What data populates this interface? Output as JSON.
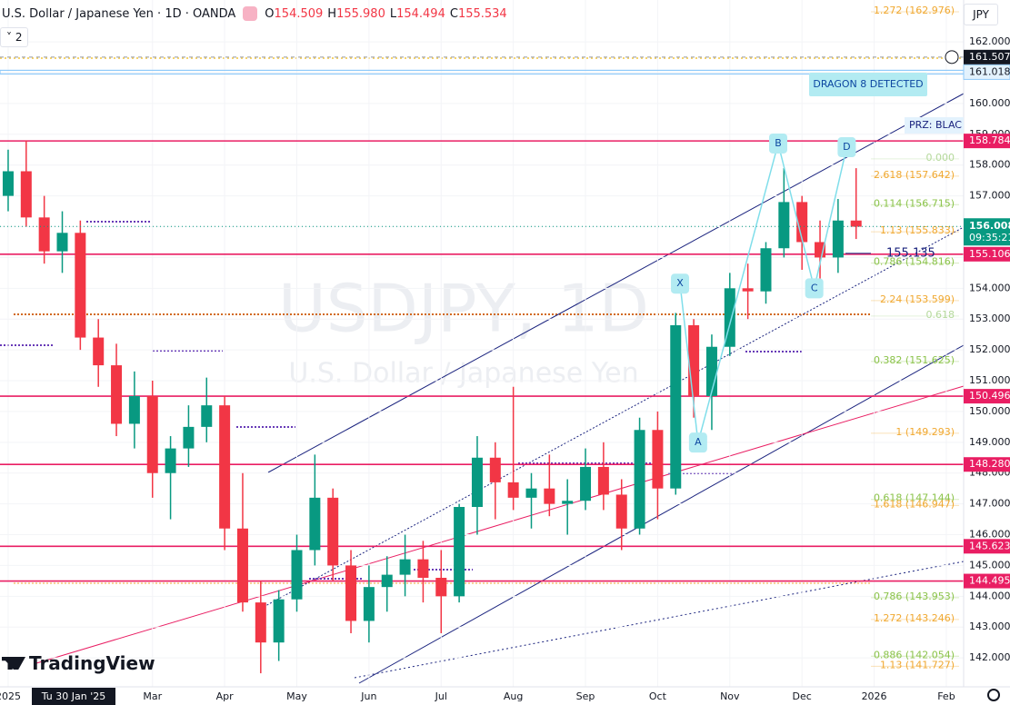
{
  "header": {
    "symbol": "U.S. Dollar / Japanese Yen · 1D · OANDA",
    "ohlc": [
      {
        "key": "O",
        "value": "154.509"
      },
      {
        "key": "H",
        "value": "155.980"
      },
      {
        "key": "L",
        "value": "154.494"
      },
      {
        "key": "C",
        "value": "155.534"
      }
    ],
    "indicators": "2",
    "currency": "JPY",
    "logo": "TradingView"
  },
  "chart_data": {
    "type": "candlestick",
    "watermark": {
      "symbol": "USDJPY, 1D",
      "name": "U.S. Dollar / Japanese Yen"
    },
    "up_color": "#089981",
    "down_color": "#f23645",
    "x": [
      0,
      0.25,
      0.5,
      0.75,
      1,
      1.25,
      1.5,
      1.75,
      2,
      2.25,
      2.5,
      2.75,
      3,
      3.25,
      3.5,
      3.75,
      4,
      4.25,
      4.5,
      4.75,
      5,
      5.25,
      5.5,
      5.75,
      6,
      6.25,
      6.5,
      6.75,
      7,
      7.25,
      7.5,
      7.75,
      8,
      8.25,
      8.5,
      8.75,
      9,
      9.25,
      9.5,
      9.75,
      10,
      10.25,
      10.5,
      10.75,
      11,
      11.25,
      11.5,
      11.75
    ],
    "open": [
      157.0,
      157.8,
      156.3,
      155.2,
      155.8,
      152.4,
      151.5,
      149.6,
      150.5,
      148.0,
      148.8,
      149.5,
      150.2,
      146.2,
      143.8,
      142.5,
      143.9,
      145.5,
      147.2,
      145.0,
      143.2,
      144.3,
      144.7,
      145.2,
      144.6,
      144.0,
      146.9,
      148.5,
      147.7,
      147.2,
      147.5,
      147.0,
      147.1,
      148.2,
      147.3,
      146.2,
      149.4,
      147.5,
      152.8,
      150.5,
      152.1,
      154.0,
      153.9,
      155.3,
      156.8,
      155.5,
      155.0,
      156.2
    ],
    "high": [
      158.5,
      158.8,
      157.0,
      156.5,
      156.2,
      153.0,
      152.2,
      151.3,
      151.0,
      149.2,
      150.2,
      151.1,
      150.5,
      148.0,
      144.5,
      144.2,
      146.0,
      148.6,
      147.5,
      145.5,
      145.0,
      145.3,
      146.0,
      145.8,
      145.5,
      147.0,
      149.2,
      149.0,
      150.8,
      148.0,
      148.6,
      147.8,
      148.8,
      149.0,
      147.8,
      149.8,
      150.0,
      153.2,
      153.0,
      152.5,
      154.5,
      154.8,
      155.5,
      157.9,
      157.0,
      156.2,
      156.9,
      157.9
    ],
    "low": [
      156.5,
      156.0,
      154.8,
      154.5,
      152.0,
      150.8,
      149.2,
      148.8,
      147.2,
      146.5,
      148.2,
      149.0,
      145.5,
      143.5,
      141.5,
      141.9,
      143.5,
      145.0,
      144.5,
      142.8,
      142.5,
      143.5,
      144.0,
      143.8,
      142.8,
      143.8,
      146.0,
      146.5,
      146.8,
      146.2,
      146.6,
      146.0,
      146.8,
      146.8,
      145.5,
      146.0,
      146.5,
      147.3,
      149.8,
      149.4,
      151.8,
      153.0,
      153.5,
      155.0,
      154.6,
      154.3,
      154.5,
      155.6
    ],
    "close": [
      157.8,
      156.3,
      155.2,
      155.8,
      152.4,
      151.5,
      149.6,
      150.5,
      148.0,
      148.8,
      149.5,
      150.2,
      146.2,
      143.8,
      142.5,
      143.9,
      145.5,
      147.2,
      145.0,
      143.2,
      144.3,
      144.7,
      145.2,
      144.6,
      144.0,
      146.9,
      148.5,
      147.7,
      147.2,
      147.5,
      147.0,
      147.1,
      148.2,
      147.3,
      146.2,
      149.4,
      147.5,
      152.8,
      150.5,
      152.1,
      154.0,
      153.9,
      155.3,
      156.8,
      155.5,
      155.0,
      156.2,
      156.0
    ],
    "xlim": [
      -0.113,
      13.24
    ],
    "xticks": [
      {
        "value": 0,
        "label": "2025"
      },
      {
        "value": 2,
        "label": "Mar"
      },
      {
        "value": 3,
        "label": "Apr"
      },
      {
        "value": 4,
        "label": "May"
      },
      {
        "value": 5,
        "label": "Jun"
      },
      {
        "value": 6,
        "label": "Jul"
      },
      {
        "value": 7,
        "label": "Aug"
      },
      {
        "value": 8,
        "label": "Sep"
      },
      {
        "value": 9,
        "label": "Oct"
      },
      {
        "value": 10,
        "label": "Nov"
      },
      {
        "value": 11,
        "label": "Dec"
      },
      {
        "value": 12,
        "label": "2026"
      },
      {
        "value": 13,
        "label": "Feb"
      }
    ],
    "crosshair_x_label": "Tu 30 Jan '25",
    "ylim": [
      141.06,
      163.36
    ],
    "yticks": [
      {
        "value": 142,
        "label": "142.000"
      },
      {
        "value": 143,
        "label": "143.000"
      },
      {
        "value": 144,
        "label": "144.000"
      },
      {
        "value": 145,
        "label": "145.000"
      },
      {
        "value": 146,
        "label": "146.000"
      },
      {
        "value": 147,
        "label": "147.000"
      },
      {
        "value": 148,
        "label": "148.000"
      },
      {
        "value": 149,
        "label": "149.000"
      },
      {
        "value": 150,
        "label": "150.000"
      },
      {
        "value": 151,
        "label": "151.000"
      },
      {
        "value": 152,
        "label": "152.000"
      },
      {
        "value": 153,
        "label": "153.000"
      },
      {
        "value": 154,
        "label": "154.000"
      },
      {
        "value": 155,
        "label": "155.000"
      },
      {
        "value": 156,
        "label": "156.000"
      },
      {
        "value": 157,
        "label": "157.000"
      },
      {
        "value": 158,
        "label": "158.000"
      },
      {
        "value": 159,
        "label": "159.000"
      },
      {
        "value": 160,
        "label": "160.000"
      },
      {
        "value": 161,
        "label": "161.000"
      },
      {
        "value": 162,
        "label": "162.000"
      }
    ],
    "levels": [
      {
        "value": 158.784,
        "label": "158.784",
        "color": "#e91e63"
      },
      {
        "value": 155.106,
        "label": "155.106",
        "color": "#e91e63"
      },
      {
        "value": 150.496,
        "label": "150.496",
        "color": "#e91e63"
      },
      {
        "value": 148.28,
        "label": "148.280",
        "color": "#e91e63"
      },
      {
        "value": 145.623,
        "label": "145.623",
        "color": "#e91e63"
      },
      {
        "value": 144.495,
        "label": "144.495",
        "color": "#e91e63"
      }
    ],
    "band_level": {
      "value": 161.018,
      "label": "161.018",
      "color": "#90caf9"
    },
    "crosshair_level": {
      "value": 161.507,
      "label": "161.507"
    },
    "current": {
      "value": 156.008,
      "label": "156.008",
      "countdown": "09:35:21"
    },
    "price_note": {
      "value": 155.135,
      "label": "155.135"
    },
    "fib_labels": [
      {
        "label": "1.272 (162.976)",
        "value": 162.976,
        "color": "#f0a830"
      },
      {
        "label": "0.000",
        "value": 158.2,
        "color": "#b5d99c"
      },
      {
        "label": "2.618 (157.642)",
        "value": 157.642,
        "color": "#f0a830"
      },
      {
        "label": "0.114 (156.715)",
        "value": 156.715,
        "color": "#8bc34a"
      },
      {
        "label": "1.13 (155.833)",
        "value": 155.833,
        "color": "#f0a830"
      },
      {
        "label": "0.786 (154.816)",
        "value": 154.816,
        "color": "#8bc34a"
      },
      {
        "label": "2.24 (153.599)",
        "value": 153.599,
        "color": "#f0a830"
      },
      {
        "label": "0.618",
        "value": 153.1,
        "color": "#b5d99c"
      },
      {
        "label": "0.382 (151.625)",
        "value": 151.625,
        "color": "#8bc34a"
      },
      {
        "label": "1 (149.293)",
        "value": 149.293,
        "color": "#f0a830"
      },
      {
        "label": "0.618 (147.144)",
        "value": 147.144,
        "color": "#8bc34a"
      },
      {
        "label": "1.618 (146.947)",
        "value": 146.947,
        "color": "#f0a830"
      },
      {
        "label": "0.786 (143.953)",
        "value": 143.953,
        "color": "#8bc34a"
      },
      {
        "label": "1.272 (143.246)",
        "value": 143.246,
        "color": "#f0a830"
      },
      {
        "label": "0.886 (142.054)",
        "value": 142.054,
        "color": "#8bc34a"
      },
      {
        "label": "1.13 (141.727)",
        "value": 141.727,
        "color": "#f0a830"
      }
    ],
    "pattern_points": [
      {
        "label": "X",
        "x": 9.31,
        "y": 154.15
      },
      {
        "label": "A",
        "x": 9.56,
        "y": 148.99
      },
      {
        "label": "B",
        "x": 10.67,
        "y": 158.7
      },
      {
        "label": "C",
        "x": 11.17,
        "y": 154.0
      },
      {
        "label": "D",
        "x": 11.62,
        "y": 158.58
      }
    ],
    "pattern_note": "DRAGON 8 DETECTED",
    "prz_note": "PRZ: BLAC"
  }
}
